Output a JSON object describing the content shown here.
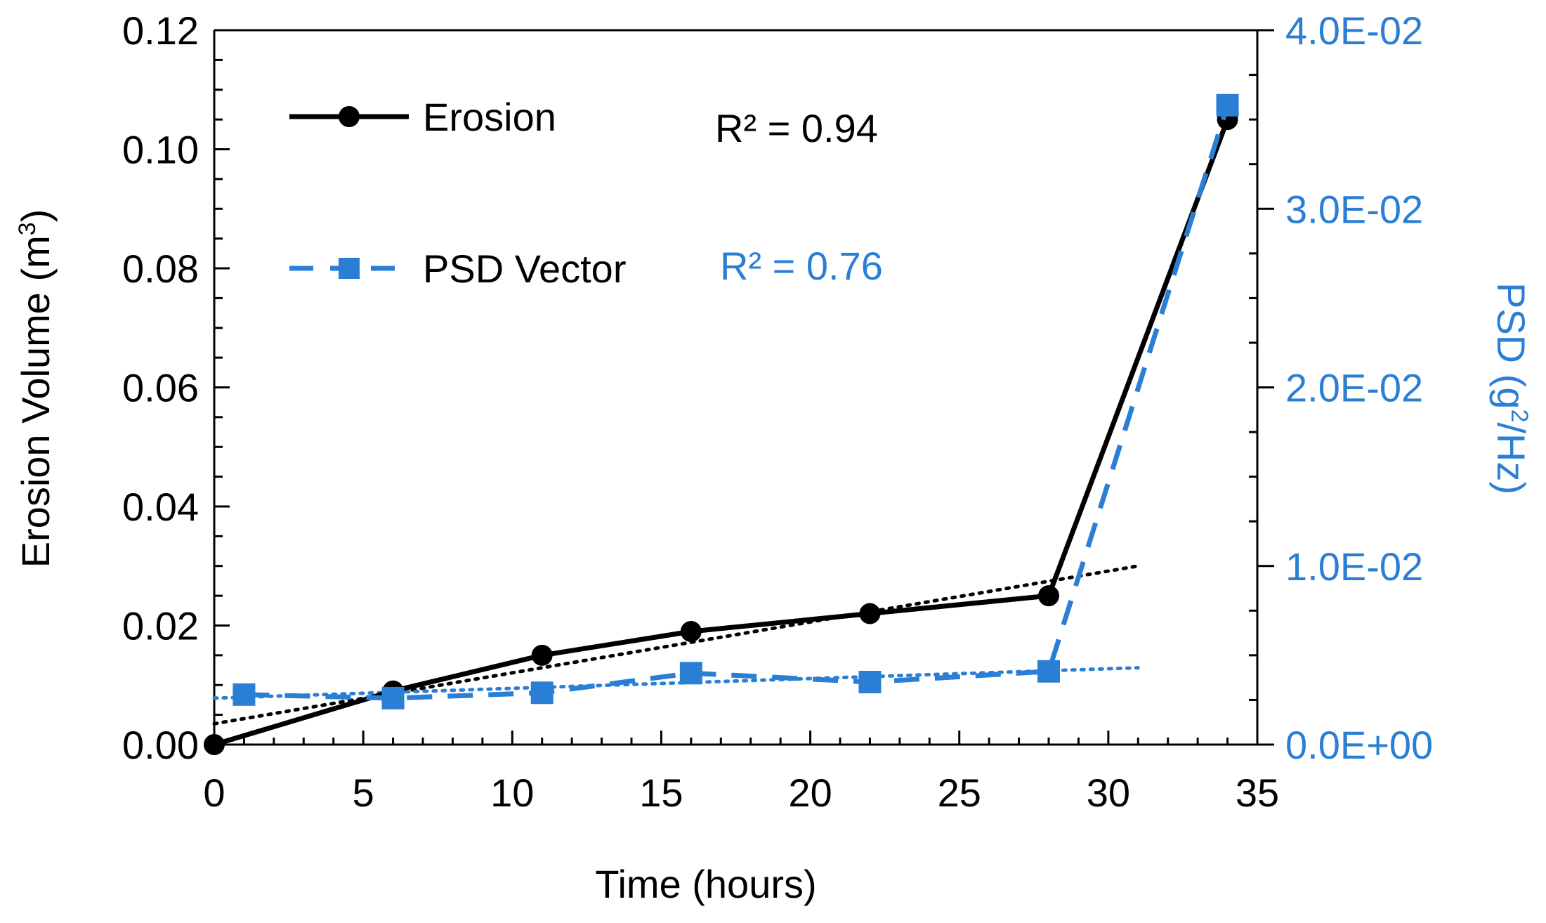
{
  "chart_data": {
    "type": "line",
    "title": "",
    "xlabel": "Time (hours)",
    "ylabel_left": "Erosion Volume (m",
    "ylabel_left_sup": "3",
    "ylabel_left_close": ")",
    "ylabel_right": "PSD (g",
    "ylabel_right_sup": "2",
    "ylabel_right_close": "/Hz)",
    "xlim": [
      0,
      35
    ],
    "ylim_left": [
      0,
      0.12
    ],
    "ylim_right": [
      0,
      0.04
    ],
    "x_ticks": [
      "0",
      "5",
      "10",
      "15",
      "20",
      "25",
      "30",
      "35"
    ],
    "y_left_ticks": [
      "0.00",
      "0.02",
      "0.04",
      "0.06",
      "0.08",
      "0.10",
      "0.12"
    ],
    "y_right_ticks": [
      "0.0E+00",
      "1.0E-02",
      "2.0E-02",
      "3.0E-02",
      "4.0E-02"
    ],
    "colors": {
      "erosion": "#000000",
      "psd": "#2a7fd4"
    },
    "series": [
      {
        "name": "Erosion",
        "axis": "left",
        "x": [
          0,
          6,
          11,
          16,
          22,
          28,
          34
        ],
        "values": [
          0.0,
          0.009,
          0.015,
          0.019,
          0.022,
          0.025,
          0.105
        ]
      },
      {
        "name": "PSD Vector",
        "axis": "right",
        "x": [
          1,
          6,
          11,
          16,
          22,
          28,
          34
        ],
        "values": [
          0.0028,
          0.0026,
          0.0029,
          0.004,
          0.0035,
          0.0041,
          0.0358
        ]
      }
    ],
    "trendlines": [
      {
        "series": "Erosion",
        "axis": "left",
        "x": [
          0,
          31
        ],
        "values": [
          0.0035,
          0.03
        ],
        "r2_label": "R² = 0.94"
      },
      {
        "series": "PSD Vector",
        "axis": "right",
        "x": [
          0,
          31
        ],
        "values": [
          0.0026,
          0.0043
        ],
        "r2_label": "R² = 0.76"
      }
    ],
    "legend": [
      {
        "label": "Erosion"
      },
      {
        "label": "PSD Vector"
      }
    ]
  }
}
